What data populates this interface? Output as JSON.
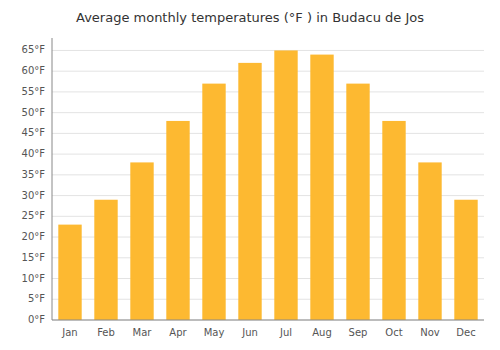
{
  "chart_data": {
    "type": "bar",
    "title": "Average monthly temperatures (°F ) in Budacu de Jos",
    "categories": [
      "Jan",
      "Feb",
      "Mar",
      "Apr",
      "May",
      "Jun",
      "Jul",
      "Aug",
      "Sep",
      "Oct",
      "Nov",
      "Dec"
    ],
    "values": [
      23,
      29,
      38,
      48,
      57,
      62,
      65,
      64,
      57,
      48,
      38,
      29
    ],
    "color": "#FDB931",
    "ylim": [
      0,
      68
    ],
    "yticks": [
      {
        "value": 0,
        "label": "0°F"
      },
      {
        "value": 5,
        "label": "5°F"
      },
      {
        "value": 10,
        "label": "10°F"
      },
      {
        "value": 15,
        "label": "15°F"
      },
      {
        "value": 20,
        "label": "20°F"
      },
      {
        "value": 25,
        "label": "25°F"
      },
      {
        "value": 30,
        "label": "30°F"
      },
      {
        "value": 35,
        "label": "35°F"
      },
      {
        "value": 40,
        "label": "40°F"
      },
      {
        "value": 45,
        "label": "45°F"
      },
      {
        "value": 50,
        "label": "50°F"
      },
      {
        "value": 55,
        "label": "55°F"
      },
      {
        "value": 60,
        "label": "60°F"
      },
      {
        "value": 65,
        "label": "65°F"
      }
    ],
    "grid": true
  }
}
